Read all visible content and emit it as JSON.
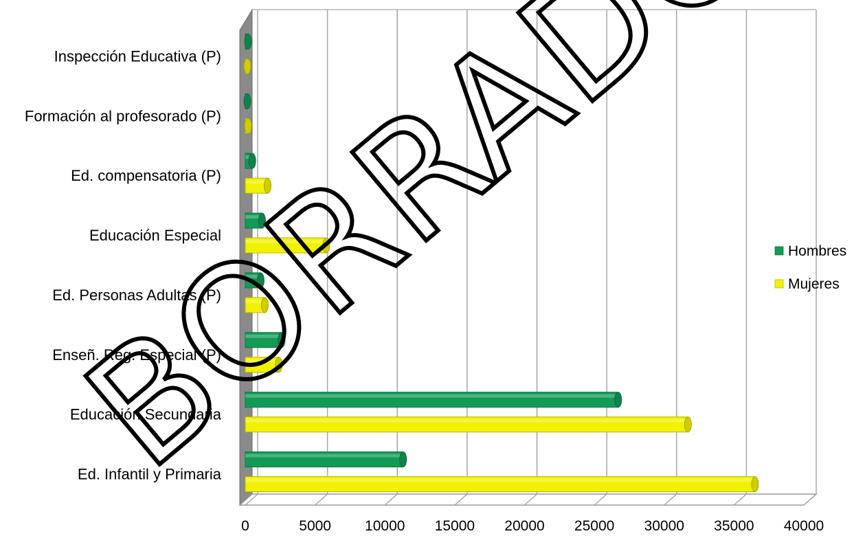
{
  "chart_data": {
    "type": "bar",
    "orientation": "horizontal",
    "style": "3d-cylinder",
    "categories": [
      "Inspección Educativa (P)",
      "Formación al profesorado (P)",
      "Ed. compensatoria (P)",
      "Educación Especial",
      "Ed. Personas Adultas (P)",
      "Enseñ. Rég. Especial (P)",
      "Educación Secundaria",
      "Ed. Infantil y Primaria"
    ],
    "series": [
      {
        "name": "Hombres",
        "color": "#139a57",
        "values": [
          200,
          150,
          500,
          1200,
          1100,
          2600,
          26700,
          11300
        ]
      },
      {
        "name": "Mujeres",
        "color": "#f2f200",
        "values": [
          150,
          200,
          1600,
          5800,
          1400,
          2400,
          31700,
          36500
        ]
      }
    ],
    "xlim": [
      0,
      40000
    ],
    "xticks": [
      "0",
      "5000",
      "10000",
      "15000",
      "20000",
      "25000",
      "30000",
      "35000",
      "40000"
    ],
    "grid": true,
    "legend_position": "right",
    "watermark": "BORRADOR"
  }
}
